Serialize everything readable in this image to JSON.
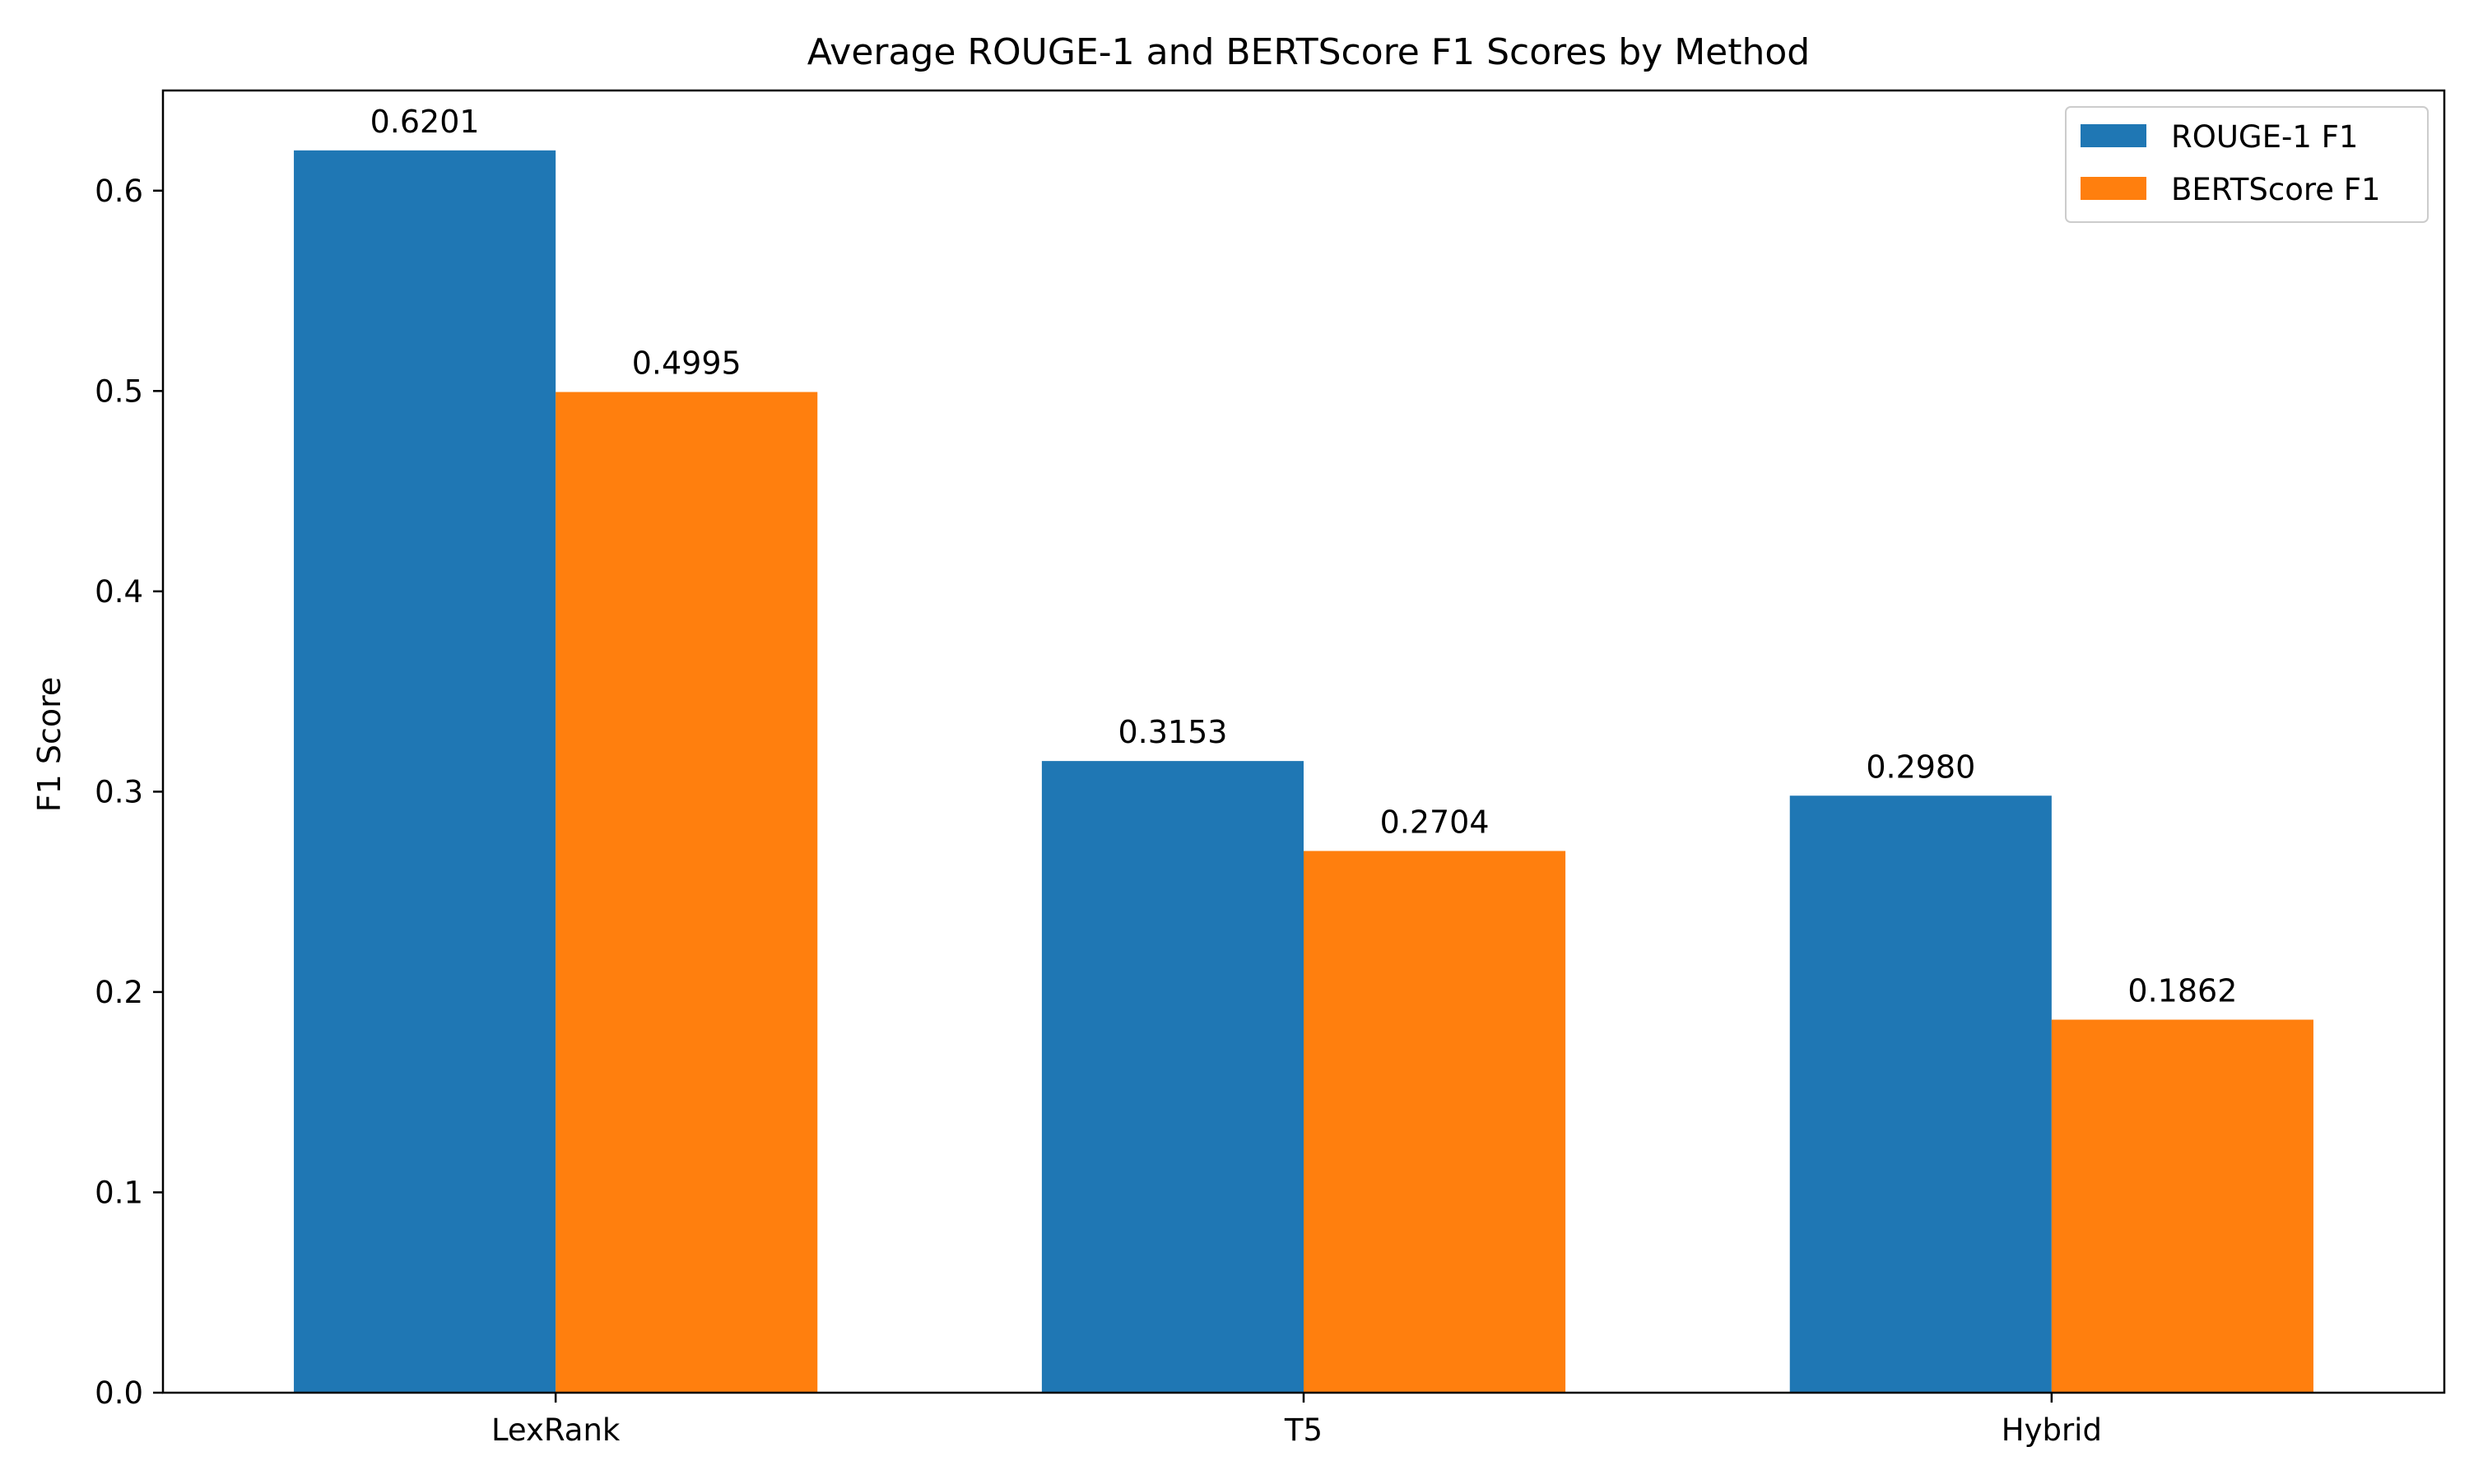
{
  "chart_data": {
    "type": "bar",
    "title": "Average ROUGE-1 and BERTScore F1 Scores by Method",
    "xlabel": "",
    "ylabel": "F1 Score",
    "categories": [
      "LexRank",
      "T5",
      "Hybrid"
    ],
    "series": [
      {
        "name": "ROUGE-1 F1",
        "color": "#1f77b4",
        "values": [
          0.6201,
          0.3153,
          0.298
        ],
        "labels": [
          "0.6201",
          "0.3153",
          "0.2980"
        ]
      },
      {
        "name": "BERTScore F1",
        "color": "#ff7f0e",
        "values": [
          0.4995,
          0.2704,
          0.1862
        ],
        "labels": [
          "0.4995",
          "0.2704",
          "0.1862"
        ]
      }
    ],
    "ylim": [
      0,
      0.65
    ],
    "yticks": [
      0.0,
      0.1,
      0.2,
      0.3,
      0.4,
      0.5,
      0.6
    ],
    "ytick_labels": [
      "0.0",
      "0.1",
      "0.2",
      "0.3",
      "0.4",
      "0.5",
      "0.6"
    ],
    "grid": false,
    "legend_position": "top-right"
  }
}
